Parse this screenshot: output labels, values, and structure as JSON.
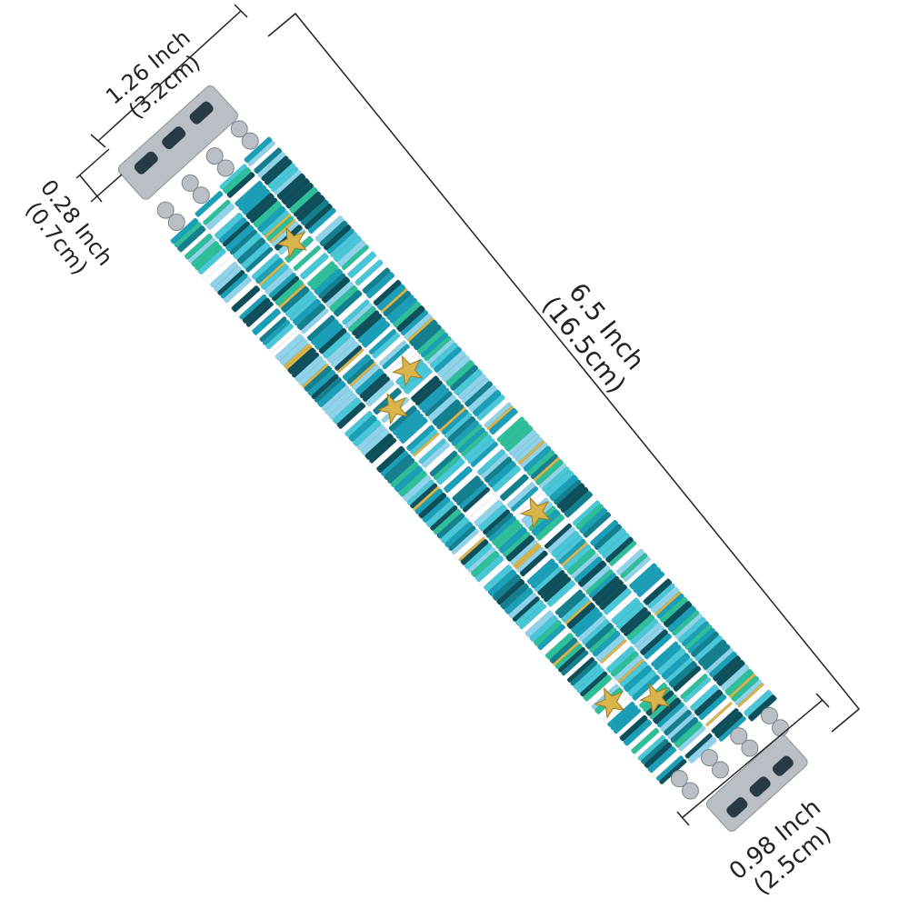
{
  "dimensions": {
    "width_top": {
      "inch": "1.26 Inch",
      "cm": "(3.2cm)"
    },
    "connector_depth": {
      "inch": "0.28 Inch",
      "cm": "(0.7cm)"
    },
    "length": {
      "inch": "6.5 Inch",
      "cm": "(16.5cm)"
    },
    "width_bottom": {
      "inch": "0.98 Inch",
      "cm": "(2.5cm)"
    }
  },
  "colors": {
    "bead_palette": [
      "#1a9fb8",
      "#0e4f5c",
      "#2dbf9a",
      "#8fd3ea",
      "#ffffff",
      "#13808f",
      "#48c7d9"
    ],
    "gold": "#d8b44a",
    "silver": "#b9bfc4",
    "dimension_line": "#222222"
  }
}
